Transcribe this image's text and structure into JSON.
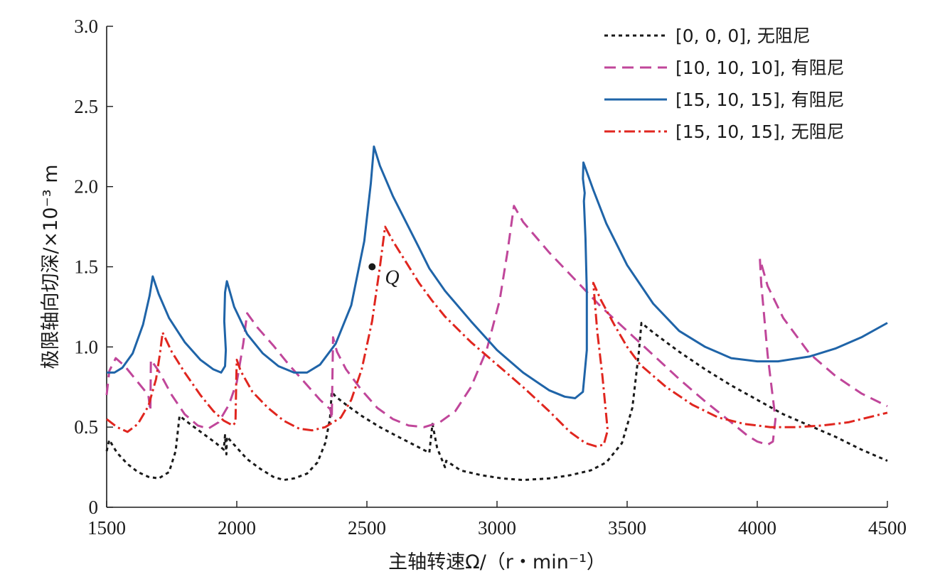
{
  "chart_data": {
    "type": "line",
    "xlabel": "主轴转速Ω/（r・min⁻¹）",
    "ylabel": "极限轴向切深/×10⁻³ m",
    "xlim": [
      1500,
      4500
    ],
    "ylim": [
      0,
      3.0
    ],
    "xticks": [
      1500,
      2000,
      2500,
      3000,
      3500,
      4000,
      4500
    ],
    "yticks": [
      0,
      0.5,
      1.0,
      1.5,
      2.0,
      2.5,
      3.0
    ],
    "xtick_labels": [
      "1500",
      "2000",
      "2500",
      "3000",
      "3500",
      "4000",
      "4500"
    ],
    "ytick_labels": [
      "0",
      "0.5",
      "1.0",
      "1.5",
      "2.0",
      "2.5",
      "3.0"
    ],
    "legend_position": "top-right",
    "grid": false,
    "series": [
      {
        "name": "[0, 0, 0], 无阻尼",
        "color": "#1a1a1a",
        "style": "dotted",
        "points": [
          [
            1500,
            0.35
          ],
          [
            1510,
            0.42
          ],
          [
            1540,
            0.34
          ],
          [
            1580,
            0.27
          ],
          [
            1620,
            0.22
          ],
          [
            1660,
            0.19
          ],
          [
            1700,
            0.18
          ],
          [
            1740,
            0.22
          ],
          [
            1765,
            0.35
          ],
          [
            1780,
            0.57
          ],
          [
            1820,
            0.52
          ],
          [
            1870,
            0.46
          ],
          [
            1920,
            0.4
          ],
          [
            1950,
            0.36
          ],
          [
            1955,
            0.45
          ],
          [
            1960,
            0.33
          ],
          [
            1962,
            0.44
          ],
          [
            1990,
            0.39
          ],
          [
            2040,
            0.3
          ],
          [
            2090,
            0.24
          ],
          [
            2140,
            0.19
          ],
          [
            2180,
            0.17
          ],
          [
            2220,
            0.18
          ],
          [
            2270,
            0.21
          ],
          [
            2310,
            0.28
          ],
          [
            2340,
            0.4
          ],
          [
            2358,
            0.55
          ],
          [
            2365,
            0.72
          ],
          [
            2380,
            0.69
          ],
          [
            2420,
            0.64
          ],
          [
            2480,
            0.57
          ],
          [
            2550,
            0.5
          ],
          [
            2620,
            0.44
          ],
          [
            2680,
            0.39
          ],
          [
            2740,
            0.34
          ],
          [
            2752,
            0.52
          ],
          [
            2770,
            0.37
          ],
          [
            2800,
            0.25
          ],
          [
            2805,
            0.29
          ],
          [
            2860,
            0.23
          ],
          [
            2940,
            0.2
          ],
          [
            3020,
            0.18
          ],
          [
            3100,
            0.17
          ],
          [
            3200,
            0.18
          ],
          [
            3280,
            0.2
          ],
          [
            3360,
            0.23
          ],
          [
            3420,
            0.28
          ],
          [
            3480,
            0.4
          ],
          [
            3520,
            0.62
          ],
          [
            3545,
            0.97
          ],
          [
            3555,
            1.15
          ],
          [
            3600,
            1.09
          ],
          [
            3700,
            0.97
          ],
          [
            3800,
            0.86
          ],
          [
            3900,
            0.76
          ],
          [
            4000,
            0.67
          ],
          [
            4100,
            0.58
          ],
          [
            4200,
            0.51
          ],
          [
            4300,
            0.44
          ],
          [
            4400,
            0.36
          ],
          [
            4500,
            0.29
          ]
        ]
      },
      {
        "name": "[10, 10, 10], 有阻尼",
        "color": "#c0469a",
        "style": "dashed",
        "points": [
          [
            1500,
            0.7
          ],
          [
            1510,
            0.85
          ],
          [
            1535,
            0.93
          ],
          [
            1570,
            0.88
          ],
          [
            1620,
            0.78
          ],
          [
            1660,
            0.7
          ],
          [
            1668,
            0.6
          ],
          [
            1670,
            0.92
          ],
          [
            1700,
            0.85
          ],
          [
            1750,
            0.7
          ],
          [
            1800,
            0.58
          ],
          [
            1850,
            0.51
          ],
          [
            1890,
            0.49
          ],
          [
            1930,
            0.53
          ],
          [
            1970,
            0.64
          ],
          [
            2000,
            0.78
          ],
          [
            2025,
            1.02
          ],
          [
            2040,
            1.21
          ],
          [
            2080,
            1.12
          ],
          [
            2140,
            1.01
          ],
          [
            2200,
            0.89
          ],
          [
            2260,
            0.78
          ],
          [
            2320,
            0.67
          ],
          [
            2360,
            0.61
          ],
          [
            2365,
            0.55
          ],
          [
            2370,
            1.06
          ],
          [
            2385,
            0.97
          ],
          [
            2420,
            0.86
          ],
          [
            2480,
            0.73
          ],
          [
            2540,
            0.62
          ],
          [
            2600,
            0.55
          ],
          [
            2660,
            0.51
          ],
          [
            2720,
            0.5
          ],
          [
            2780,
            0.53
          ],
          [
            2840,
            0.6
          ],
          [
            2900,
            0.75
          ],
          [
            2960,
            0.98
          ],
          [
            3010,
            1.29
          ],
          [
            3040,
            1.59
          ],
          [
            3065,
            1.88
          ],
          [
            3100,
            1.78
          ],
          [
            3200,
            1.59
          ],
          [
            3300,
            1.42
          ],
          [
            3400,
            1.25
          ],
          [
            3500,
            1.1
          ],
          [
            3600,
            0.95
          ],
          [
            3700,
            0.8
          ],
          [
            3800,
            0.66
          ],
          [
            3900,
            0.53
          ],
          [
            3960,
            0.45
          ],
          [
            4000,
            0.41
          ],
          [
            4040,
            0.39
          ],
          [
            4060,
            0.41
          ],
          [
            4070,
            0.55
          ],
          [
            4040,
            0.95
          ],
          [
            4015,
            1.4
          ],
          [
            4010,
            1.55
          ],
          [
            4040,
            1.38
          ],
          [
            4100,
            1.18
          ],
          [
            4200,
            0.96
          ],
          [
            4300,
            0.82
          ],
          [
            4400,
            0.71
          ],
          [
            4500,
            0.63
          ]
        ]
      },
      {
        "name": "[15, 10, 15], 有阻尼",
        "color": "#1f64a8",
        "style": "solid",
        "points": [
          [
            1500,
            0.84
          ],
          [
            1530,
            0.84
          ],
          [
            1560,
            0.87
          ],
          [
            1600,
            0.96
          ],
          [
            1640,
            1.14
          ],
          [
            1665,
            1.32
          ],
          [
            1677,
            1.44
          ],
          [
            1700,
            1.33
          ],
          [
            1740,
            1.18
          ],
          [
            1800,
            1.03
          ],
          [
            1860,
            0.92
          ],
          [
            1910,
            0.86
          ],
          [
            1940,
            0.84
          ],
          [
            1955,
            0.88
          ],
          [
            1958,
            0.98
          ],
          [
            1952,
            1.16
          ],
          [
            1955,
            1.34
          ],
          [
            1962,
            1.41
          ],
          [
            1990,
            1.25
          ],
          [
            2040,
            1.08
          ],
          [
            2100,
            0.96
          ],
          [
            2160,
            0.88
          ],
          [
            2220,
            0.84
          ],
          [
            2270,
            0.84
          ],
          [
            2320,
            0.89
          ],
          [
            2380,
            1.02
          ],
          [
            2440,
            1.26
          ],
          [
            2490,
            1.66
          ],
          [
            2515,
            2.02
          ],
          [
            2527,
            2.25
          ],
          [
            2550,
            2.13
          ],
          [
            2600,
            1.94
          ],
          [
            2650,
            1.78
          ],
          [
            2700,
            1.62
          ],
          [
            2740,
            1.49
          ],
          [
            2800,
            1.35
          ],
          [
            2900,
            1.16
          ],
          [
            3000,
            0.98
          ],
          [
            3100,
            0.84
          ],
          [
            3200,
            0.73
          ],
          [
            3260,
            0.69
          ],
          [
            3300,
            0.68
          ],
          [
            3330,
            0.72
          ],
          [
            3345,
            0.98
          ],
          [
            3345,
            1.34
          ],
          [
            3340,
            1.68
          ],
          [
            3334,
            1.91
          ],
          [
            3337,
            1.96
          ],
          [
            3330,
            2.05
          ],
          [
            3332,
            2.15
          ],
          [
            3370,
            1.98
          ],
          [
            3420,
            1.77
          ],
          [
            3500,
            1.51
          ],
          [
            3600,
            1.27
          ],
          [
            3700,
            1.1
          ],
          [
            3800,
            1.0
          ],
          [
            3900,
            0.93
          ],
          [
            4000,
            0.91
          ],
          [
            4080,
            0.91
          ],
          [
            4200,
            0.94
          ],
          [
            4300,
            0.99
          ],
          [
            4400,
            1.06
          ],
          [
            4500,
            1.15
          ]
        ]
      },
      {
        "name": "[15, 10, 15], 无阻尼",
        "color": "#e0261f",
        "style": "dashdot",
        "points": [
          [
            1500,
            0.55
          ],
          [
            1540,
            0.5
          ],
          [
            1580,
            0.47
          ],
          [
            1620,
            0.52
          ],
          [
            1660,
            0.63
          ],
          [
            1690,
            0.8
          ],
          [
            1705,
            0.96
          ],
          [
            1715,
            1.09
          ],
          [
            1750,
            0.97
          ],
          [
            1800,
            0.84
          ],
          [
            1860,
            0.7
          ],
          [
            1910,
            0.6
          ],
          [
            1950,
            0.54
          ],
          [
            1985,
            0.51
          ],
          [
            1995,
            0.53
          ],
          [
            1998,
            0.8
          ],
          [
            2000,
            0.92
          ],
          [
            2015,
            0.85
          ],
          [
            2060,
            0.72
          ],
          [
            2120,
            0.62
          ],
          [
            2180,
            0.54
          ],
          [
            2240,
            0.49
          ],
          [
            2290,
            0.48
          ],
          [
            2340,
            0.5
          ],
          [
            2400,
            0.56
          ],
          [
            2440,
            0.67
          ],
          [
            2480,
            0.86
          ],
          [
            2520,
            1.16
          ],
          [
            2550,
            1.5
          ],
          [
            2570,
            1.75
          ],
          [
            2600,
            1.66
          ],
          [
            2650,
            1.53
          ],
          [
            2700,
            1.4
          ],
          [
            2750,
            1.29
          ],
          [
            2800,
            1.19
          ],
          [
            2900,
            1.03
          ],
          [
            3000,
            0.89
          ],
          [
            3100,
            0.75
          ],
          [
            3200,
            0.6
          ],
          [
            3280,
            0.47
          ],
          [
            3340,
            0.4
          ],
          [
            3380,
            0.38
          ],
          [
            3410,
            0.39
          ],
          [
            3425,
            0.48
          ],
          [
            3405,
            0.82
          ],
          [
            3385,
            1.1
          ],
          [
            3370,
            1.4
          ],
          [
            3400,
            1.29
          ],
          [
            3450,
            1.14
          ],
          [
            3500,
            1.0
          ],
          [
            3550,
            0.89
          ],
          [
            3650,
            0.75
          ],
          [
            3750,
            0.64
          ],
          [
            3850,
            0.56
          ],
          [
            3950,
            0.52
          ],
          [
            4050,
            0.5
          ],
          [
            4150,
            0.5
          ],
          [
            4250,
            0.51
          ],
          [
            4350,
            0.53
          ],
          [
            4450,
            0.57
          ],
          [
            4500,
            0.59
          ]
        ]
      }
    ],
    "annotations": [
      {
        "label": "Q",
        "x": 2520,
        "y": 1.5
      }
    ]
  }
}
